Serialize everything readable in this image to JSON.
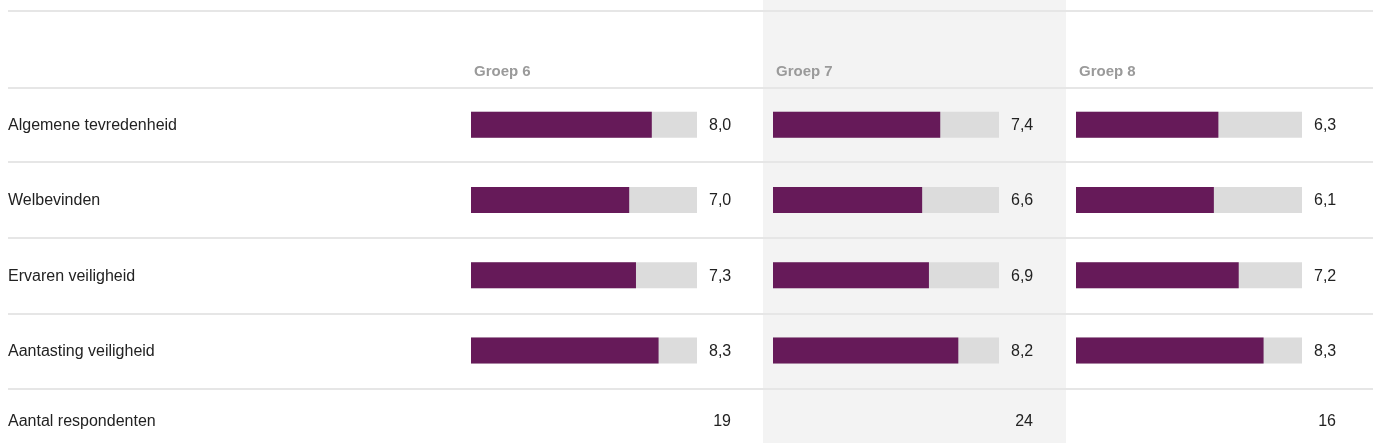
{
  "chart_data": [
    {
      "type": "bar",
      "orientation": "horizontal",
      "title": "Groep 6",
      "categories": [
        "Algemene tevredenheid",
        "Welbevinden",
        "Ervaren veiligheid",
        "Aantasting veiligheid"
      ],
      "values": [
        8.0,
        7.0,
        7.3,
        8.3
      ],
      "value_labels": [
        "8,0",
        "7,0",
        "7,3",
        "8,3"
      ],
      "color": "#661a59",
      "xlim": [
        0,
        10
      ],
      "tick_labels": "y",
      "annotations": [
        "Aantal respondenten",
        "19"
      ]
    },
    {
      "type": "bar",
      "orientation": "horizontal",
      "title": "Groep 7",
      "categories": [
        null,
        null,
        null,
        null
      ],
      "values": [
        7.4,
        6.6,
        6.9,
        8.2
      ],
      "value_labels": [
        "7,4",
        "6,6",
        "6,9",
        "8,2"
      ],
      "color": "#661a59",
      "xlim": [
        0,
        10
      ],
      "tick_labels": false,
      "annotations": [
        "24"
      ]
    },
    {
      "type": "bar",
      "orientation": "horizontal",
      "title": "Groep 8",
      "categories": [
        null,
        null,
        null,
        null
      ],
      "values": [
        6.3,
        6.1,
        7.2,
        8.3
      ],
      "value_labels": [
        "6,3",
        "6,1",
        "7,2",
        "8,3"
      ],
      "color": "#661a59",
      "xlim": [
        0,
        10
      ],
      "tick_labels": false,
      "annotations": [
        "16"
      ]
    }
  ]
}
